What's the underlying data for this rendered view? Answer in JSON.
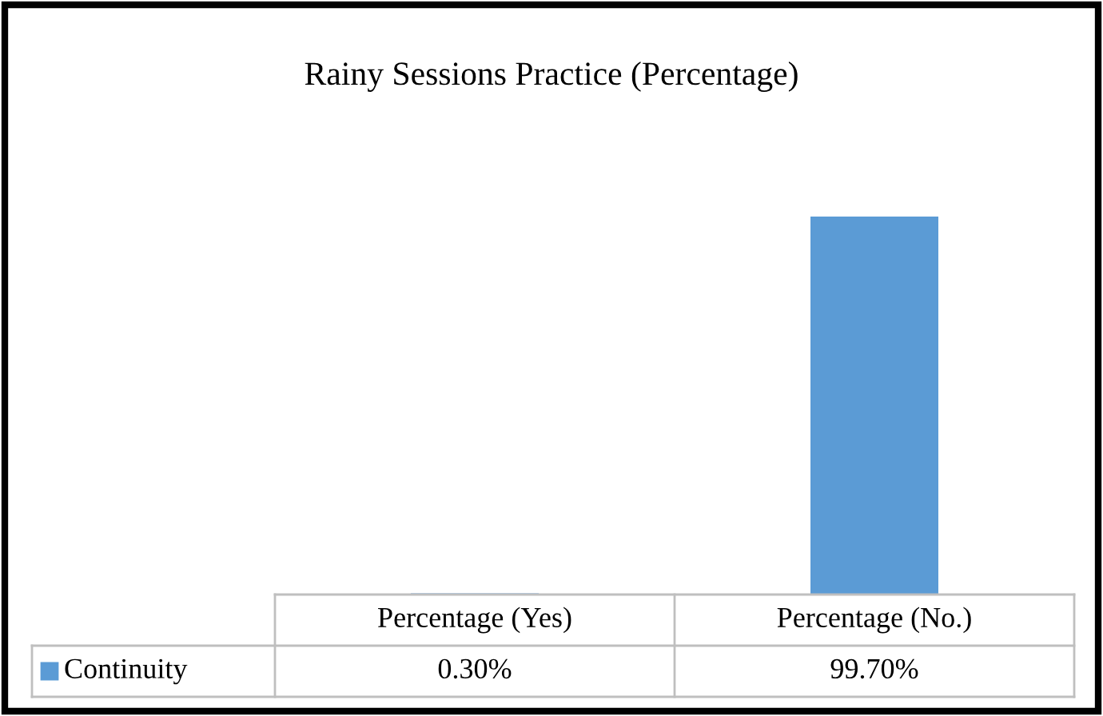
{
  "chart_data": {
    "type": "bar",
    "title": "Rainy Sessions Practice (Percentage)",
    "categories": [
      "Percentage (Yes)",
      "Percentage (No.)"
    ],
    "series": [
      {
        "name": "Continuity",
        "color": "#5b9bd5",
        "values": [
          0.3,
          99.7
        ],
        "value_labels": [
          "0.30%",
          "99.70%"
        ]
      }
    ],
    "legend": "bottom"
  }
}
